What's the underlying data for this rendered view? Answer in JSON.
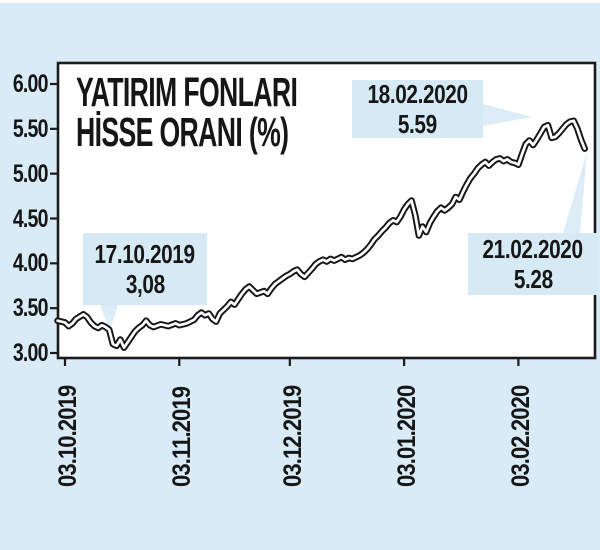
{
  "chart": {
    "title_line1": "YATIRIM FONLARI",
    "title_line2": "HİSSE ORANI (%)",
    "y_axis": {
      "labels": [
        "6.00",
        "5.50",
        "5.00",
        "4.50",
        "4.00",
        "3.50",
        "3.00"
      ]
    },
    "x_axis": {
      "labels": [
        "03.10.2019",
        "03.11.2019",
        "03.12.2019",
        "03.01.2020",
        "03.02.2020"
      ],
      "tick_days": [
        0,
        31,
        61,
        92,
        123
      ]
    },
    "annotations": [
      {
        "date": "18.02.2020",
        "value": "5.59"
      },
      {
        "date": "17.10.2019",
        "value": "3,08"
      },
      {
        "date": "21.02.2020",
        "value": "5.28"
      }
    ],
    "colors": {
      "page_background": "#d8ebf7",
      "plot_background": "#ffffff",
      "annotation_box": "#d6eaf6",
      "callout_wedge": "#dcedf8",
      "line_outline": "#161616",
      "line_core": "#ffffff",
      "axis": "#1b1b1b",
      "text": "#161616"
    }
  },
  "chart_data": {
    "type": "line",
    "title": "YATIRIM FONLARI HİSSE ORANI (%)",
    "ylabel": "",
    "xlabel": "",
    "ylim": [
      3.0,
      6.0
    ],
    "y_tick_step": 0.5,
    "x_unit": "days since 03.10.2019",
    "x_tick_labels": [
      "03.10.2019",
      "03.11.2019",
      "03.12.2019",
      "03.01.2020",
      "03.02.2020"
    ],
    "key_points": [
      {
        "date": "17.10.2019",
        "value": 3.08
      },
      {
        "date": "18.02.2020",
        "value": 5.59
      },
      {
        "date": "21.02.2020",
        "value": 5.28
      }
    ],
    "series": [
      {
        "name": "Hisse Oranı (%)",
        "points": [
          [
            -2,
            3.36
          ],
          [
            0,
            3.34
          ],
          [
            1,
            3.3
          ],
          [
            2,
            3.33
          ],
          [
            3,
            3.38
          ],
          [
            5,
            3.43
          ],
          [
            6,
            3.4
          ],
          [
            7,
            3.34
          ],
          [
            8,
            3.3
          ],
          [
            9,
            3.28
          ],
          [
            10,
            3.31
          ],
          [
            11,
            3.29
          ],
          [
            12,
            3.26
          ],
          [
            13,
            3.1
          ],
          [
            14,
            3.08
          ],
          [
            15,
            3.15
          ],
          [
            16,
            3.06
          ],
          [
            17,
            3.12
          ],
          [
            18,
            3.18
          ],
          [
            19,
            3.24
          ],
          [
            20,
            3.28
          ],
          [
            21,
            3.31
          ],
          [
            22,
            3.36
          ],
          [
            23,
            3.31
          ],
          [
            24,
            3.29
          ],
          [
            26,
            3.32
          ],
          [
            28,
            3.3
          ],
          [
            30,
            3.33
          ],
          [
            31,
            3.31
          ],
          [
            33,
            3.33
          ],
          [
            35,
            3.37
          ],
          [
            36,
            3.42
          ],
          [
            37,
            3.45
          ],
          [
            38,
            3.42
          ],
          [
            39,
            3.44
          ],
          [
            40,
            3.38
          ],
          [
            41,
            3.35
          ],
          [
            42,
            3.44
          ],
          [
            44,
            3.52
          ],
          [
            45,
            3.57
          ],
          [
            46,
            3.54
          ],
          [
            47,
            3.6
          ],
          [
            48,
            3.66
          ],
          [
            49,
            3.71
          ],
          [
            50,
            3.74
          ],
          [
            51,
            3.7
          ],
          [
            52,
            3.66
          ],
          [
            54,
            3.69
          ],
          [
            55,
            3.66
          ],
          [
            56,
            3.72
          ],
          [
            57,
            3.77
          ],
          [
            58,
            3.8
          ],
          [
            59,
            3.83
          ],
          [
            60,
            3.86
          ],
          [
            61,
            3.88
          ],
          [
            62,
            3.91
          ],
          [
            63,
            3.93
          ],
          [
            64,
            3.88
          ],
          [
            65,
            3.85
          ],
          [
            67,
            3.94
          ],
          [
            68,
            3.99
          ],
          [
            69,
            4.02
          ],
          [
            70,
            4.04
          ],
          [
            71,
            4.02
          ],
          [
            72,
            4.05
          ],
          [
            73,
            4.03
          ],
          [
            74,
            4.05
          ],
          [
            75,
            4.07
          ],
          [
            76,
            4.04
          ],
          [
            77,
            4.06
          ],
          [
            78,
            4.05
          ],
          [
            79,
            4.07
          ],
          [
            80,
            4.09
          ],
          [
            81,
            4.12
          ],
          [
            82,
            4.16
          ],
          [
            83,
            4.21
          ],
          [
            84,
            4.27
          ],
          [
            85,
            4.31
          ],
          [
            86,
            4.36
          ],
          [
            87,
            4.4
          ],
          [
            88,
            4.45
          ],
          [
            89,
            4.48
          ],
          [
            90,
            4.46
          ],
          [
            91,
            4.52
          ],
          [
            92,
            4.6
          ],
          [
            93,
            4.66
          ],
          [
            94,
            4.7
          ],
          [
            95,
            4.54
          ],
          [
            96,
            4.31
          ],
          [
            97,
            4.41
          ],
          [
            98,
            4.35
          ],
          [
            99,
            4.45
          ],
          [
            100,
            4.52
          ],
          [
            101,
            4.58
          ],
          [
            102,
            4.62
          ],
          [
            103,
            4.59
          ],
          [
            104,
            4.62
          ],
          [
            105,
            4.66
          ],
          [
            106,
            4.74
          ],
          [
            107,
            4.71
          ],
          [
            108,
            4.8
          ],
          [
            109,
            4.88
          ],
          [
            110,
            4.95
          ],
          [
            111,
            5.0
          ],
          [
            112,
            5.06
          ],
          [
            113,
            5.1
          ],
          [
            114,
            5.13
          ],
          [
            115,
            5.09
          ],
          [
            116,
            5.13
          ],
          [
            117,
            5.16
          ],
          [
            118,
            5.17
          ],
          [
            119,
            5.14
          ],
          [
            120,
            5.16
          ],
          [
            121,
            5.13
          ],
          [
            122,
            5.12
          ],
          [
            123,
            5.1
          ],
          [
            124,
            5.22
          ],
          [
            125,
            5.33
          ],
          [
            126,
            5.37
          ],
          [
            127,
            5.32
          ],
          [
            128,
            5.38
          ],
          [
            129,
            5.45
          ],
          [
            130,
            5.52
          ],
          [
            131,
            5.54
          ],
          [
            132,
            5.4
          ],
          [
            133,
            5.41
          ],
          [
            134,
            5.45
          ],
          [
            135,
            5.5
          ],
          [
            136,
            5.55
          ],
          [
            137,
            5.58
          ],
          [
            138,
            5.59
          ],
          [
            139,
            5.5
          ],
          [
            140,
            5.38
          ],
          [
            141,
            5.28
          ]
        ]
      }
    ]
  }
}
